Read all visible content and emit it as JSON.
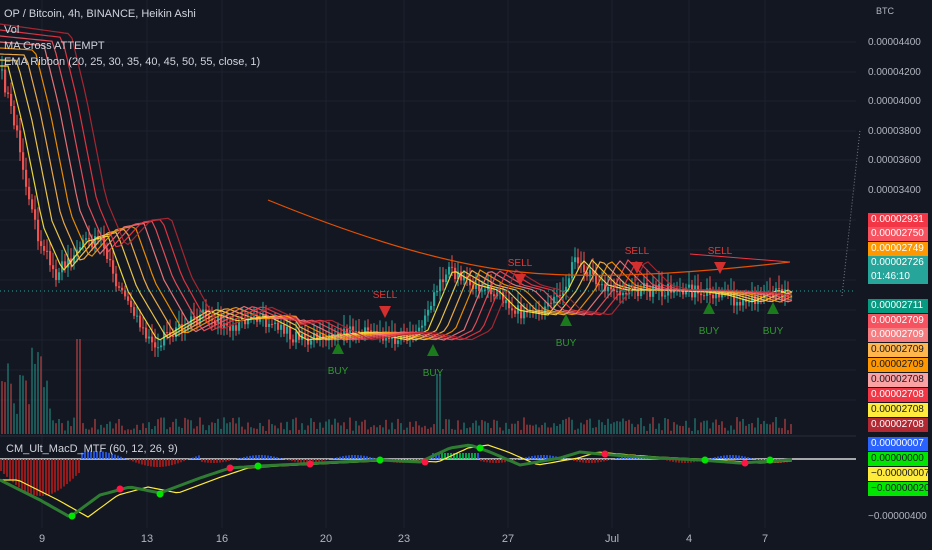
{
  "legend": {
    "title": "OP / Bitcoin, 4h, BINANCE, Heikin Ashi",
    "vol": "Vol",
    "ma_cross": "MA Cross ATTEMPT",
    "ema_ribbon": "EMA Ribbon (20, 25, 30, 35, 40, 45, 50, 55, close, 1)"
  },
  "macd_legend": "CM_Ult_MacD_MTF (60, 12, 26, 9)",
  "axis_unit": "BTC",
  "price_ticks": [
    "0.00004400",
    "0.00004200",
    "0.00004000",
    "0.00003800",
    "0.00003600",
    "0.00003400"
  ],
  "macd_tick": "−0.00000400",
  "x_ticks": [
    "9",
    "13",
    "16",
    "20",
    "23",
    "27",
    "Jul",
    "4",
    "7"
  ],
  "price_tags": [
    {
      "text": "0.00002931",
      "bg": "#f23645",
      "fg": "#ffffff"
    },
    {
      "text": "0.00002750",
      "bg": "#f7525f",
      "fg": "#ffffff"
    },
    {
      "text": "0.00002749",
      "bg": "#ff9800",
      "fg": "#ffffff"
    },
    {
      "text": "0.00002726",
      "bg": "#26a69a",
      "fg": "#ffffff"
    },
    {
      "text": "01:46:10",
      "bg": "#26a69a",
      "fg": "#ffffff"
    },
    {
      "text": "0.00002711",
      "bg": "#089981",
      "fg": "#ffffff"
    },
    {
      "text": "0.00002709",
      "bg": "#f7525f",
      "fg": "#ffffff"
    },
    {
      "text": "0.00002709",
      "bg": "#f77c80",
      "fg": "#ffffff"
    },
    {
      "text": "0.00002709",
      "bg": "#ffb74d",
      "fg": "#131722"
    },
    {
      "text": "0.00002709",
      "bg": "#ff9800",
      "fg": "#131722"
    },
    {
      "text": "0.00002708",
      "bg": "#faa1a4",
      "fg": "#131722"
    },
    {
      "text": "0.00002708",
      "bg": "#f23645",
      "fg": "#ffffff"
    },
    {
      "text": "0.00002708",
      "bg": "#ffeb3b",
      "fg": "#131722"
    },
    {
      "text": "0.00002708",
      "bg": "#b22833",
      "fg": "#ffffff"
    }
  ],
  "macd_tags": [
    {
      "text": "0.00000007",
      "bg": "#2962ff",
      "fg": "#ffffff"
    },
    {
      "text": "0.00000000",
      "bg": "#00e600",
      "fg": "#131722"
    },
    {
      "text": "−0.00000007",
      "bg": "#ffeb3b",
      "fg": "#131722"
    },
    {
      "text": "−0.00000020",
      "bg": "#00e600",
      "fg": "#131722"
    }
  ],
  "signals": [
    {
      "label": "BUY",
      "type": "buy"
    },
    {
      "label": "SELL",
      "type": "sell"
    },
    {
      "label": "BUY",
      "type": "buy"
    },
    {
      "label": "SELL",
      "type": "sell"
    },
    {
      "label": "BUY",
      "type": "buy"
    },
    {
      "label": "SELL",
      "type": "sell"
    },
    {
      "label": "BUY",
      "type": "buy"
    },
    {
      "label": "SELL",
      "type": "sell"
    },
    {
      "label": "BUY",
      "type": "buy"
    }
  ],
  "colors": {
    "up": "#26a69a",
    "down": "#ef5350",
    "bg": "#131722",
    "buy": "#1b7a1b",
    "sell": "#d32f2f"
  },
  "chart_data": {
    "type": "candlestick",
    "title": "OP / Bitcoin, 4h, BINANCE, Heikin Ashi",
    "price_range": [
      2.53e-05,
      4.62e-05
    ],
    "current_price": 2.726e-05,
    "candles_close_approx": [
      4.2e-05,
      3.6e-05,
      3.2e-05,
      2.9e-05,
      3.05e-05,
      2.85e-05,
      2.72e-05,
      2.65e-05,
      2.58e-05,
      2.7e-05,
      2.67e-05,
      2.62e-05,
      2.65e-05,
      2.6e-05,
      2.63e-05,
      2.75e-05,
      2.85e-05,
      2.9e-05,
      2.8e-05,
      2.76e-05,
      2.7e-05,
      2.68e-05,
      2.85e-05,
      2.75e-05,
      2.72e-05,
      2.72e-05,
      2.74e-05,
      2.69e-05,
      2.68e-05,
      2.71e-05,
      2.73e-05
    ],
    "series": [
      {
        "name": "EMA Ribbon (20, 25, 30, 35, 40, 45, 50, 55, close, 1)",
        "values": [
          4.45e-05,
          4.1e-05,
          3.75e-05,
          3.45e-05,
          3.18e-05,
          3e-05,
          2.9e-05,
          2.82e-05,
          2.76e-05,
          2.72e-05,
          2.68e-05,
          2.66e-05,
          2.67e-05,
          2.7e-05,
          2.72e-05,
          2.73e-05,
          2.74e-05,
          2.73e-05,
          2.72e-05,
          2.71e-05,
          2.71e-05
        ]
      }
    ],
    "macd": {
      "name": "CM_Ult_MacD_MTF (60, 12, 26, 9)",
      "tick": -4e-06
    }
  }
}
